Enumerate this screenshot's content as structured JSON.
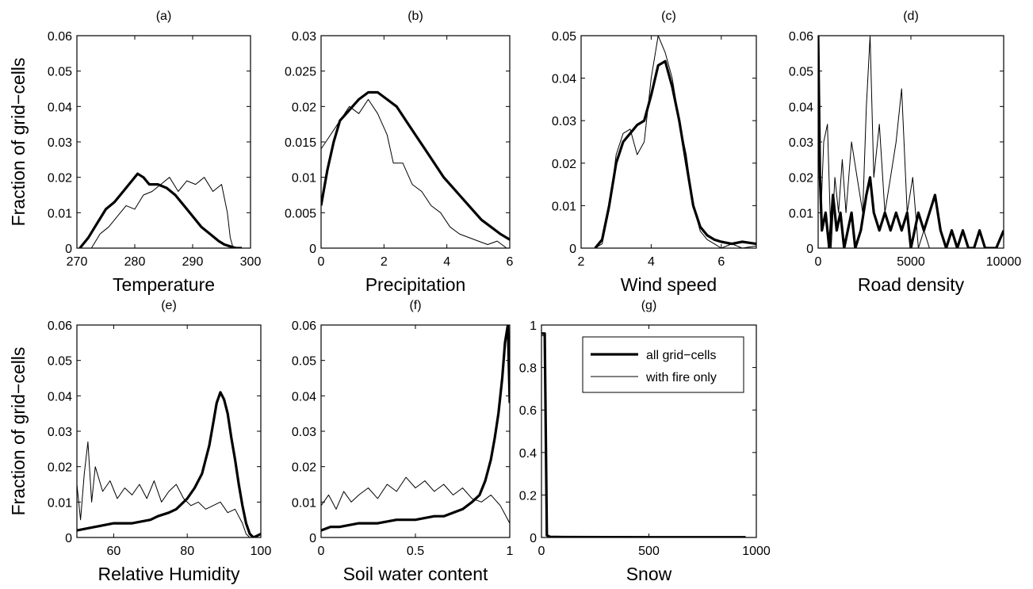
{
  "figure": {
    "ylabel": "Fraction of grid−cells",
    "legend": {
      "placement": "top-right of panel (g)",
      "items": [
        {
          "label": "all grid−cells",
          "style": "thick"
        },
        {
          "label": "with fire only",
          "style": "thin"
        }
      ]
    }
  },
  "chart_data": [
    {
      "panel": "(a)",
      "type": "line",
      "xlabel": "Temperature",
      "show_ylabel": true,
      "xlim": [
        270,
        300
      ],
      "ylim": [
        0,
        0.06
      ],
      "xticks": [
        "270",
        "280",
        "290",
        "300"
      ],
      "yticks": [
        "0",
        "0.01",
        "0.02",
        "0.03",
        "0.04",
        "0.05",
        "0.06"
      ],
      "series": [
        {
          "name": "all grid−cells",
          "x": [
            270.5,
            272,
            273.5,
            275,
            276.5,
            278,
            279.5,
            280.5,
            281.5,
            282.5,
            284,
            285.5,
            287,
            288.5,
            290,
            291.5,
            293,
            294.5,
            295.5,
            296.5,
            297.5,
            298.5
          ],
          "y": [
            0,
            0.003,
            0.007,
            0.011,
            0.013,
            0.016,
            0.019,
            0.021,
            0.02,
            0.018,
            0.018,
            0.017,
            0.015,
            0.012,
            0.009,
            0.006,
            0.004,
            0.002,
            0.001,
            0.0005,
            0,
            0
          ]
        },
        {
          "name": "with fire only",
          "x": [
            272.5,
            274,
            275.5,
            277,
            278.5,
            280,
            281.5,
            283,
            284.5,
            286,
            287.5,
            289,
            290.5,
            292,
            293.5,
            295,
            296,
            296.5,
            297
          ],
          "y": [
            0,
            0.004,
            0.006,
            0.009,
            0.012,
            0.011,
            0.015,
            0.016,
            0.018,
            0.02,
            0.016,
            0.019,
            0.018,
            0.02,
            0.016,
            0.018,
            0.01,
            0.003,
            0
          ]
        }
      ]
    },
    {
      "panel": "(b)",
      "type": "line",
      "xlabel": "Precipitation",
      "show_ylabel": false,
      "xlim": [
        0,
        6
      ],
      "ylim": [
        0,
        0.03
      ],
      "xticks": [
        "0",
        "2",
        "4",
        "6"
      ],
      "yticks": [
        "0",
        "0.005",
        "0.01",
        "0.015",
        "0.02",
        "0.025",
        "0.03"
      ],
      "series": [
        {
          "name": "all grid−cells",
          "x": [
            0,
            0.2,
            0.4,
            0.6,
            0.8,
            1.0,
            1.2,
            1.5,
            1.8,
            2.1,
            2.4,
            2.7,
            3.0,
            3.3,
            3.6,
            3.9,
            4.2,
            4.5,
            4.8,
            5.1,
            5.4,
            5.7,
            6.0
          ],
          "y": [
            0.006,
            0.011,
            0.015,
            0.018,
            0.019,
            0.02,
            0.021,
            0.022,
            0.022,
            0.021,
            0.02,
            0.018,
            0.016,
            0.014,
            0.012,
            0.01,
            0.0085,
            0.007,
            0.0055,
            0.004,
            0.003,
            0.002,
            0.0012
          ]
        },
        {
          "name": "with fire only",
          "x": [
            0,
            0.3,
            0.6,
            0.9,
            1.2,
            1.5,
            1.8,
            2.1,
            2.3,
            2.6,
            2.9,
            3.2,
            3.5,
            3.8,
            4.1,
            4.4,
            4.7,
            5.0,
            5.3,
            5.6,
            5.9
          ],
          "y": [
            0.014,
            0.016,
            0.018,
            0.02,
            0.019,
            0.021,
            0.019,
            0.016,
            0.012,
            0.012,
            0.009,
            0.008,
            0.006,
            0.005,
            0.003,
            0.002,
            0.0015,
            0.001,
            0.0005,
            0.001,
            0
          ]
        }
      ]
    },
    {
      "panel": "(c)",
      "type": "line",
      "xlabel": "Wind speed",
      "show_ylabel": false,
      "xlim": [
        2,
        7
      ],
      "ylim": [
        0,
        0.05
      ],
      "xticks": [
        "2",
        "4",
        "6"
      ],
      "yticks": [
        "0",
        "0.01",
        "0.02",
        "0.03",
        "0.04",
        "0.05"
      ],
      "series": [
        {
          "name": "all grid−cells",
          "x": [
            2.4,
            2.6,
            2.8,
            3.0,
            3.2,
            3.4,
            3.6,
            3.8,
            4.0,
            4.2,
            4.4,
            4.6,
            4.8,
            5.0,
            5.2,
            5.4,
            5.6,
            5.8,
            6.0,
            6.3,
            6.6,
            7.0
          ],
          "y": [
            0,
            0.002,
            0.01,
            0.02,
            0.025,
            0.027,
            0.029,
            0.03,
            0.036,
            0.043,
            0.044,
            0.038,
            0.03,
            0.02,
            0.01,
            0.005,
            0.003,
            0.002,
            0.0015,
            0.001,
            0.0015,
            0.001
          ]
        },
        {
          "name": "with fire only",
          "x": [
            2.4,
            2.6,
            2.8,
            3.0,
            3.2,
            3.4,
            3.6,
            3.8,
            4.0,
            4.2,
            4.4,
            4.6,
            4.8,
            5.0,
            5.2,
            5.4,
            5.6,
            5.8,
            6.0,
            6.3,
            6.6,
            7.0
          ],
          "y": [
            0,
            0.001,
            0.009,
            0.022,
            0.027,
            0.028,
            0.022,
            0.025,
            0.04,
            0.05,
            0.046,
            0.04,
            0.03,
            0.022,
            0.01,
            0.004,
            0.002,
            0.001,
            0,
            0.001,
            0,
            0.0005
          ]
        }
      ]
    },
    {
      "panel": "(d)",
      "type": "line",
      "xlabel": "Road density",
      "show_ylabel": false,
      "xlim": [
        0,
        10000
      ],
      "ylim": [
        0,
        0.06
      ],
      "xticks": [
        "0",
        "5000",
        "10000"
      ],
      "yticks": [
        "0",
        "0.01",
        "0.02",
        "0.03",
        "0.04",
        "0.05",
        "0.06"
      ],
      "series": [
        {
          "name": "all grid−cells",
          "x": [
            0,
            100,
            200,
            400,
            600,
            800,
            1000,
            1200,
            1400,
            1600,
            1800,
            2000,
            2300,
            2600,
            2800,
            3000,
            3300,
            3600,
            3900,
            4200,
            4500,
            4800,
            5000,
            5200,
            5400,
            5700,
            6000,
            6300,
            6600,
            6900,
            7200,
            7500,
            7800,
            8100,
            8400,
            8700,
            9000,
            9300,
            9600,
            10000
          ],
          "y": [
            0.06,
            0.02,
            0.005,
            0.01,
            0,
            0.015,
            0.005,
            0.01,
            0,
            0.005,
            0.01,
            0,
            0.005,
            0.015,
            0.02,
            0.01,
            0.005,
            0.01,
            0.005,
            0.01,
            0.005,
            0.01,
            0,
            0.005,
            0.01,
            0.005,
            0.01,
            0.015,
            0.005,
            0,
            0.005,
            0,
            0.005,
            0,
            0,
            0.005,
            0,
            0,
            0,
            0.005
          ]
        },
        {
          "name": "with fire only",
          "x": [
            0,
            150,
            300,
            500,
            700,
            900,
            1100,
            1300,
            1500,
            1800,
            2100,
            2400,
            2600,
            2800,
            3000,
            3300,
            3600,
            3900,
            4200,
            4500,
            4800,
            5100,
            5400,
            5700,
            6000
          ],
          "y": [
            0.06,
            0.01,
            0.03,
            0.035,
            0,
            0.02,
            0.01,
            0.025,
            0.01,
            0.03,
            0.02,
            0.01,
            0.04,
            0.06,
            0.02,
            0.035,
            0.01,
            0.02,
            0.03,
            0.045,
            0.01,
            0.02,
            0,
            0.005,
            0
          ]
        }
      ]
    },
    {
      "panel": "(e)",
      "type": "line",
      "xlabel": "Relative Humidity",
      "show_ylabel": true,
      "xlim": [
        50,
        100
      ],
      "ylim": [
        0,
        0.06
      ],
      "xticks": [
        "60",
        "80",
        "100"
      ],
      "yticks": [
        "0",
        "0.01",
        "0.02",
        "0.03",
        "0.04",
        "0.05",
        "0.06"
      ],
      "series": [
        {
          "name": "all grid−cells",
          "x": [
            50,
            55,
            60,
            65,
            70,
            72,
            75,
            77,
            80,
            82,
            84,
            86,
            87,
            88,
            89,
            90,
            91,
            92,
            93,
            94,
            95,
            96,
            97,
            98,
            99,
            100
          ],
          "y": [
            0.002,
            0.003,
            0.004,
            0.004,
            0.005,
            0.006,
            0.007,
            0.008,
            0.011,
            0.014,
            0.018,
            0.026,
            0.032,
            0.038,
            0.041,
            0.039,
            0.035,
            0.028,
            0.022,
            0.015,
            0.009,
            0.004,
            0.001,
            0,
            0.0005,
            0.001
          ]
        },
        {
          "name": "with fire only",
          "x": [
            50,
            51,
            52,
            53,
            54,
            55,
            57,
            59,
            61,
            63,
            65,
            67,
            69,
            71,
            73,
            75,
            77,
            79,
            81,
            83,
            85,
            87,
            89,
            91,
            93,
            95,
            96,
            97
          ],
          "y": [
            0.015,
            0.005,
            0.018,
            0.027,
            0.01,
            0.02,
            0.013,
            0.016,
            0.011,
            0.014,
            0.012,
            0.015,
            0.011,
            0.016,
            0.01,
            0.013,
            0.015,
            0.011,
            0.009,
            0.01,
            0.008,
            0.009,
            0.01,
            0.007,
            0.008,
            0.004,
            0.001,
            0
          ]
        }
      ]
    },
    {
      "panel": "(f)",
      "type": "line",
      "xlabel": "Soil water content",
      "show_ylabel": false,
      "xlim": [
        0,
        1
      ],
      "ylim": [
        0,
        0.06
      ],
      "xticks": [
        "0",
        "0.5",
        "1"
      ],
      "yticks": [
        "0",
        "0.01",
        "0.02",
        "0.03",
        "0.04",
        "0.05",
        "0.06"
      ],
      "series": [
        {
          "name": "all grid−cells",
          "x": [
            0,
            0.05,
            0.1,
            0.2,
            0.3,
            0.4,
            0.5,
            0.6,
            0.65,
            0.7,
            0.75,
            0.8,
            0.84,
            0.87,
            0.9,
            0.92,
            0.94,
            0.96,
            0.975,
            0.99,
            1.0
          ],
          "y": [
            0.002,
            0.003,
            0.003,
            0.004,
            0.004,
            0.005,
            0.005,
            0.006,
            0.006,
            0.007,
            0.008,
            0.01,
            0.012,
            0.016,
            0.022,
            0.028,
            0.035,
            0.045,
            0.055,
            0.06,
            0.038
          ]
        },
        {
          "name": "with fire only",
          "x": [
            0,
            0.04,
            0.08,
            0.12,
            0.16,
            0.2,
            0.25,
            0.3,
            0.35,
            0.4,
            0.45,
            0.5,
            0.55,
            0.6,
            0.65,
            0.7,
            0.75,
            0.8,
            0.85,
            0.9,
            0.95,
            1.0
          ],
          "y": [
            0.009,
            0.012,
            0.008,
            0.013,
            0.01,
            0.012,
            0.014,
            0.011,
            0.015,
            0.013,
            0.017,
            0.014,
            0.016,
            0.013,
            0.015,
            0.012,
            0.014,
            0.011,
            0.01,
            0.012,
            0.009,
            0.004
          ]
        }
      ]
    },
    {
      "panel": "(g)",
      "type": "line",
      "xlabel": "Snow",
      "show_ylabel": false,
      "xlim": [
        0,
        1000
      ],
      "ylim": [
        0,
        1
      ],
      "xticks": [
        "0",
        "500",
        "1000"
      ],
      "yticks": [
        "0",
        "0.2",
        "0.4",
        "0.6",
        "0.8",
        "1"
      ],
      "series": [
        {
          "name": "all grid−cells",
          "x": [
            0,
            15,
            25,
            40,
            100,
            500,
            950
          ],
          "y": [
            0.96,
            0.96,
            0.01,
            0.003,
            0.002,
            0.001,
            0.001
          ]
        },
        {
          "name": "with fire only",
          "x": [
            0,
            15,
            25,
            40,
            100,
            500,
            950
          ],
          "y": [
            0.95,
            0.95,
            0.008,
            0.002,
            0.001,
            0,
            0
          ]
        }
      ]
    }
  ]
}
